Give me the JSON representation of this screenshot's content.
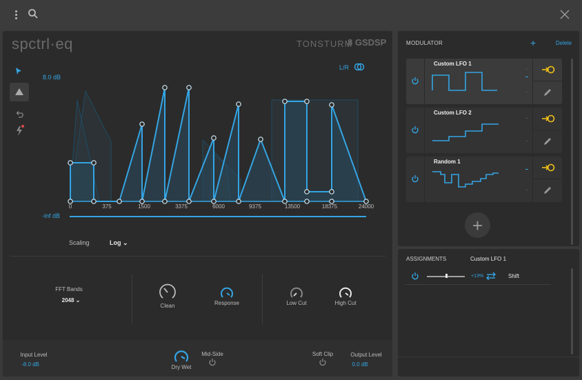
{
  "topbar": {
    "menu_icon": "more-vertical-icon",
    "search_icon": "search-icon",
    "close_icon": "close-icon"
  },
  "plugin": {
    "brand": "spctrl·eq",
    "vendor": "TONSTURM",
    "vendor2": "GSDSP",
    "db_max": "8.0 dB",
    "db_min": "-inf dB",
    "lr_label": "L/R",
    "freq_ticks": [
      "0",
      "375",
      "1500",
      "3375",
      "6000",
      "9375",
      "13500",
      "18375",
      "24000"
    ],
    "scaling_label": "Scaling",
    "scaling_value": "Log",
    "fft_label": "FFT Bands",
    "fft_value": "2048",
    "knobs": {
      "clean": "Clean",
      "response": "Response",
      "low_cut": "Low Cut",
      "high_cut": "High Cut"
    },
    "footer": {
      "input_label": "Input Level",
      "input_value": "-8.0 dB",
      "dry_wet": "Dry Wet",
      "mid_side": "Mid-Side",
      "soft_clip": "Soft Clip",
      "output_label": "Output Level",
      "output_value": "0.0 dB"
    }
  },
  "modulator": {
    "title": "MODULATOR",
    "add": "+",
    "delete": "Delete",
    "items": [
      {
        "name": "Custom LFO 1"
      },
      {
        "name": "Custom LFO 2"
      },
      {
        "name": "Random 1"
      }
    ]
  },
  "assignments": {
    "title": "ASSIGNMENTS",
    "target": "Custom LFO 1",
    "row": {
      "amount": "+13%",
      "param": "Shift"
    }
  },
  "colors": {
    "accent": "#34a5e4",
    "target_yellow": "#f2c218",
    "panel": "#2b2b2b"
  }
}
